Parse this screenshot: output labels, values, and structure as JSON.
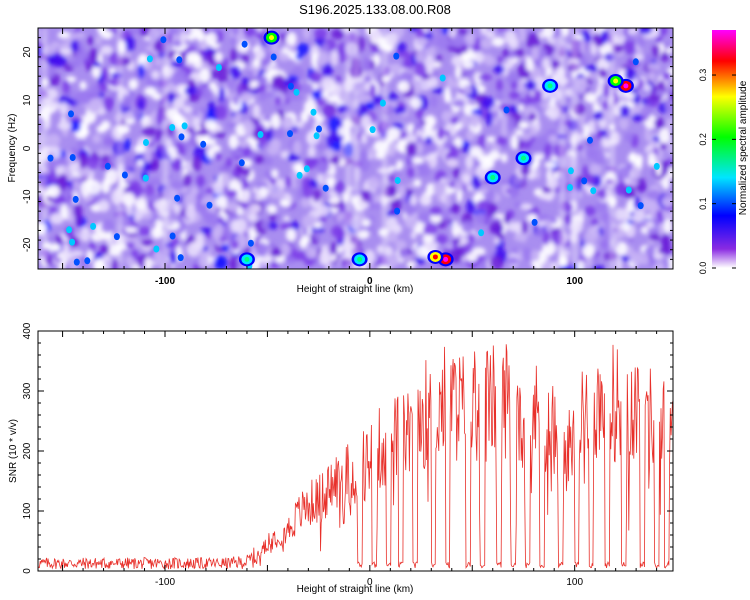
{
  "title": "S196.2025.133.08.00.R08",
  "colors": {
    "line": "#e8302a",
    "colorbar": [
      "#ffffff",
      "#8a2be2",
      "#0000ff",
      "#00e5ff",
      "#00ff00",
      "#ffff00",
      "#ff0000",
      "#ff00ff"
    ]
  },
  "chart_data": [
    {
      "type": "heatmap",
      "xlabel": "Height of straight line (km)",
      "ylabel": "Frequency (Hz)",
      "xlim": [
        -162,
        148
      ],
      "ylim": [
        -25,
        25
      ],
      "xticks": [
        -100,
        0,
        100
      ],
      "xtick_labels": [
        "-100",
        "0",
        "100"
      ],
      "yticks": [
        -20,
        -10,
        0,
        10,
        20
      ],
      "ytick_labels": [
        "-20",
        "-10",
        "0",
        "10",
        "20"
      ],
      "colorbar": {
        "label": "Normalized spectral amplitude",
        "range": [
          0.0,
          0.37
        ],
        "ticks": [
          0.0,
          0.1,
          0.2,
          0.3
        ],
        "tick_labels": [
          "0.0",
          "0.1",
          "0.2",
          "0.3"
        ]
      },
      "hotspots": [
        {
          "x": 125,
          "y": 13,
          "value": 0.35
        },
        {
          "x": 120,
          "y": 14,
          "value": 0.18
        },
        {
          "x": 37,
          "y": -23,
          "value": 0.36
        },
        {
          "x": 32,
          "y": -22.5,
          "value": 0.25
        },
        {
          "x": -48,
          "y": 23,
          "value": 0.15
        },
        {
          "x": 75,
          "y": -2,
          "value": 0.14
        },
        {
          "x": 88,
          "y": 13,
          "value": 0.12
        },
        {
          "x": 60,
          "y": -6,
          "value": 0.11
        },
        {
          "x": -5,
          "y": -23,
          "value": 0.12
        },
        {
          "x": -60,
          "y": -23,
          "value": 0.12
        }
      ]
    },
    {
      "type": "line",
      "xlabel": "Height of straight line (km)",
      "ylabel": "SNR (10 * v/v)",
      "xlim": [
        -162,
        148
      ],
      "ylim": [
        0,
        400
      ],
      "xticks": [
        -100,
        0,
        100
      ],
      "xtick_labels": [
        "-100",
        "0",
        "100"
      ],
      "yticks": [
        0,
        100,
        200,
        300,
        400
      ],
      "ytick_labels": [
        "0",
        "100",
        "200",
        "300",
        "400"
      ],
      "series": [
        {
          "x": [
            -162,
            -150,
            -140,
            -130,
            -120,
            -110,
            -100,
            -90,
            -80,
            -70,
            -60,
            -55,
            -50,
            -45,
            -40,
            -35,
            -30,
            -25,
            -20,
            -15,
            -10,
            -5,
            0,
            5,
            10,
            15,
            20,
            25,
            30,
            35,
            40,
            45,
            50,
            55,
            60,
            65,
            70,
            75,
            80,
            85,
            90,
            95,
            100,
            105,
            110,
            115,
            120,
            125,
            130,
            135,
            140,
            145,
            148
          ],
          "values": [
            15,
            15,
            15,
            15,
            15,
            15,
            15,
            15,
            15,
            15,
            18,
            30,
            60,
            70,
            80,
            110,
            130,
            140,
            160,
            180,
            190,
            200,
            220,
            240,
            250,
            260,
            280,
            300,
            320,
            330,
            330,
            320,
            320,
            330,
            330,
            340,
            340,
            320,
            310,
            290,
            280,
            220,
            260,
            300,
            320,
            330,
            330,
            330,
            320,
            300,
            300,
            280,
            280
          ]
        }
      ],
      "dropouts": [
        -5,
        2,
        9,
        15,
        22,
        31,
        38,
        48,
        55,
        63,
        70,
        77,
        84,
        93,
        101,
        108,
        116,
        124,
        133,
        140,
        145
      ]
    }
  ]
}
